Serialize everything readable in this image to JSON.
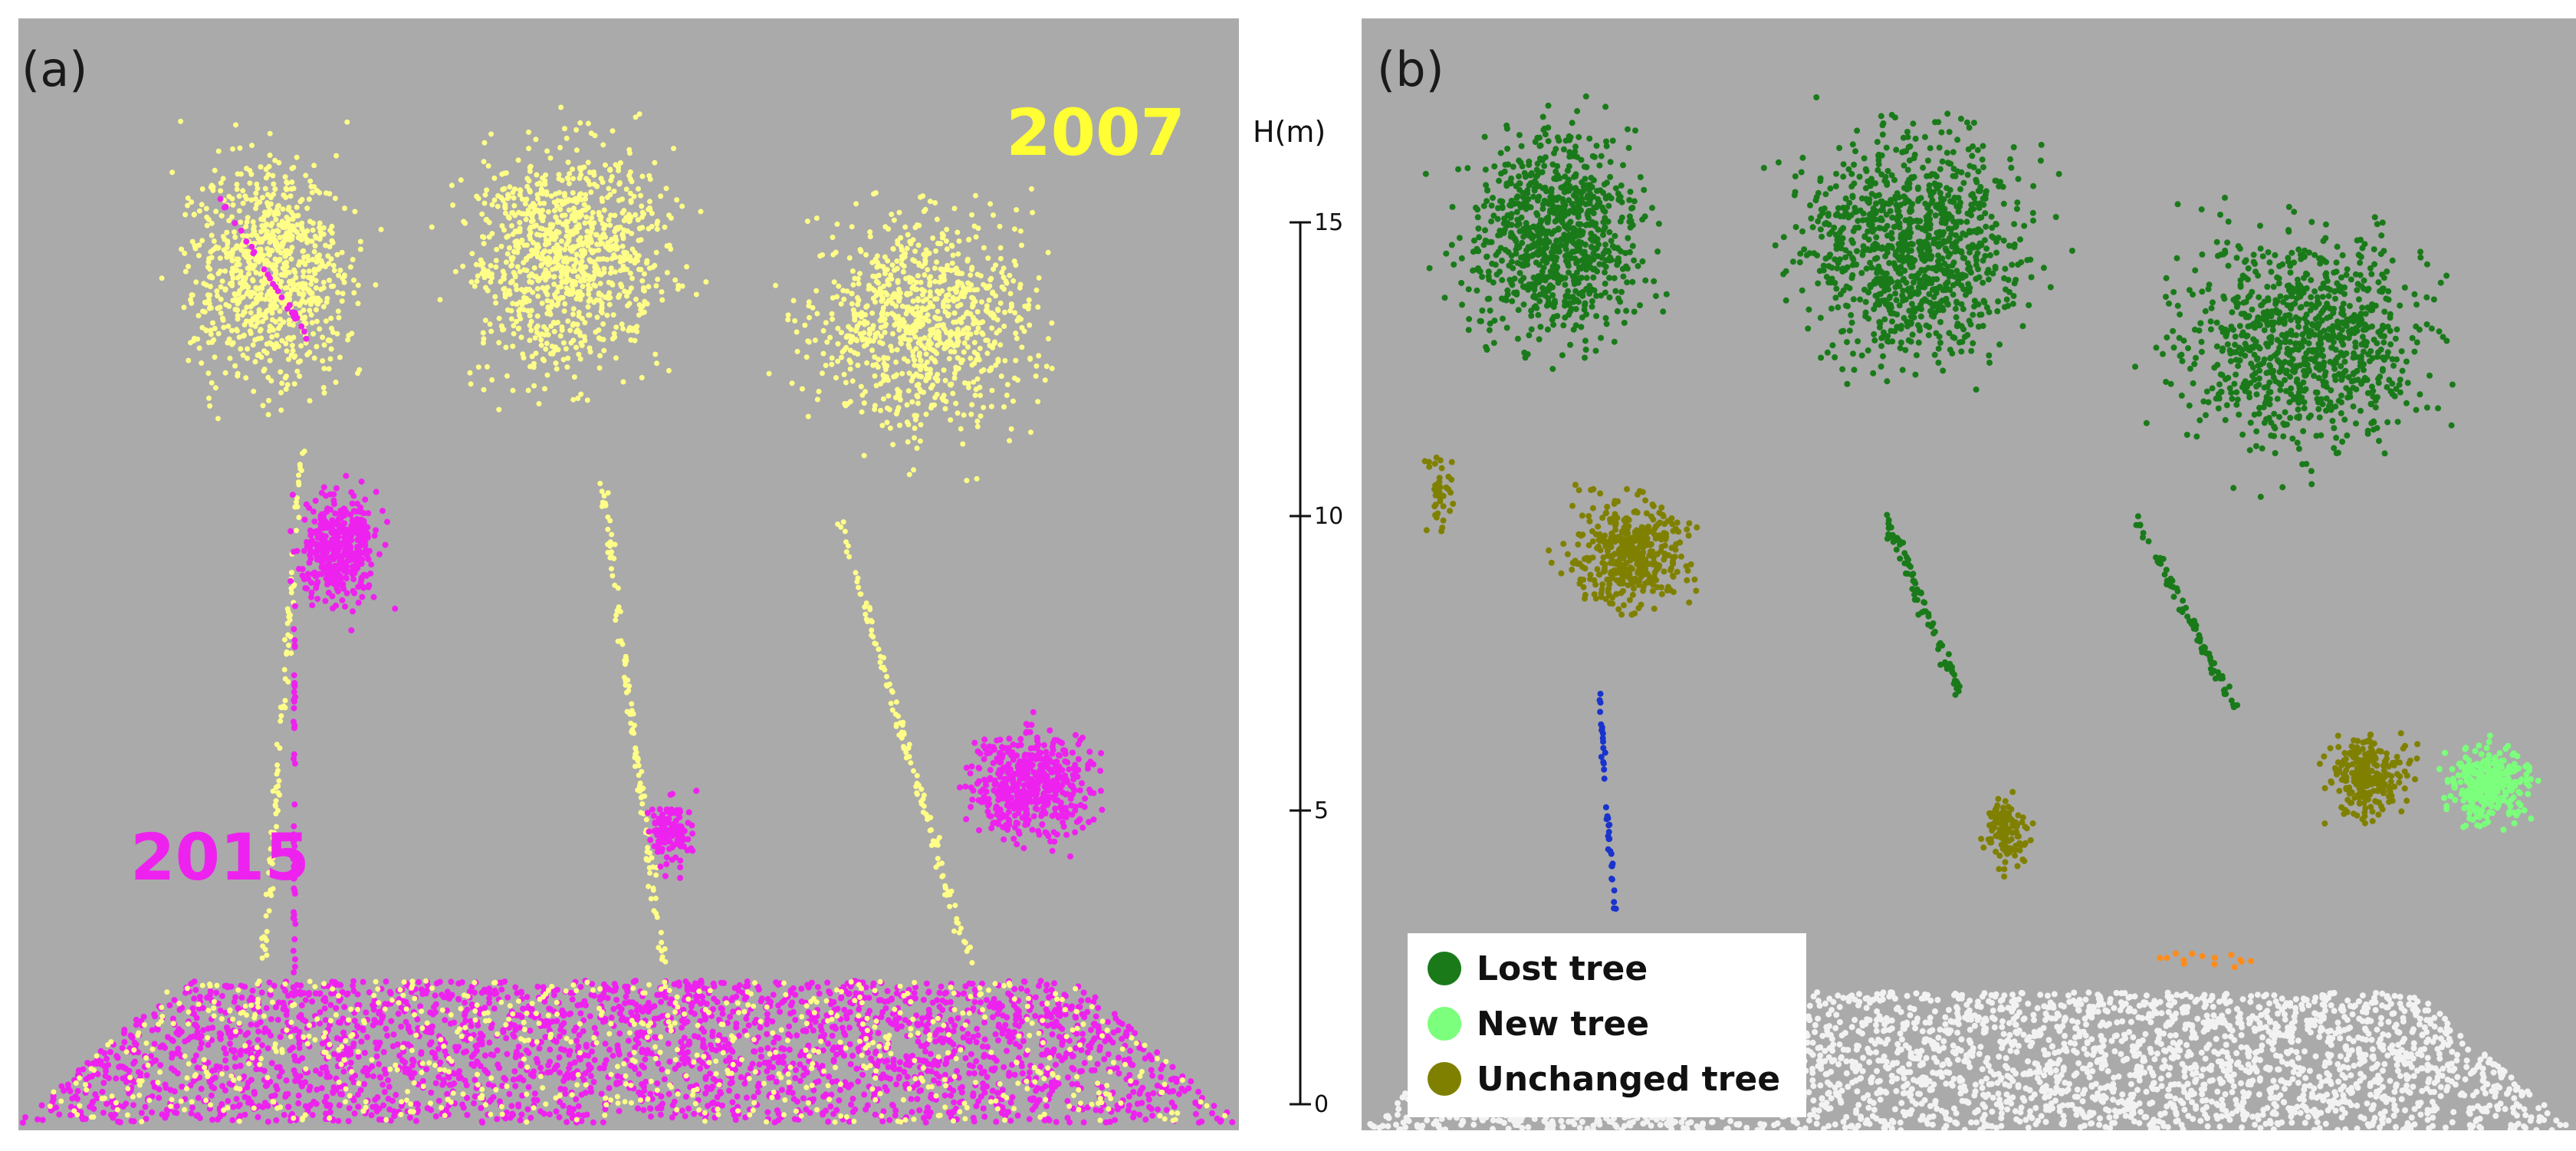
{
  "panels": {
    "a": {
      "label": "(a)",
      "year_2007": "2007",
      "year_2015": "2015"
    },
    "b": {
      "label": "(b)"
    }
  },
  "scale": {
    "title": "H(m)",
    "ticks": [
      "0",
      "5",
      "10",
      "15"
    ]
  },
  "legend": {
    "items": [
      {
        "label": "Lost tree",
        "color": "#1a7a1a"
      },
      {
        "label": "New tree",
        "color": "#7cff7c"
      },
      {
        "label": "Unchanged tree",
        "color": "#808000"
      }
    ]
  },
  "colors": {
    "background": "#aaaaaa",
    "points_2007": "#ffff88",
    "points_2015": "#ee22ee",
    "lost": "#1a7a1a",
    "new": "#7cff7c",
    "unchanged": "#808000",
    "ground": "#f2f2f2",
    "trunk_other": "#1a33cc",
    "noise": "#ff8c1a"
  }
}
